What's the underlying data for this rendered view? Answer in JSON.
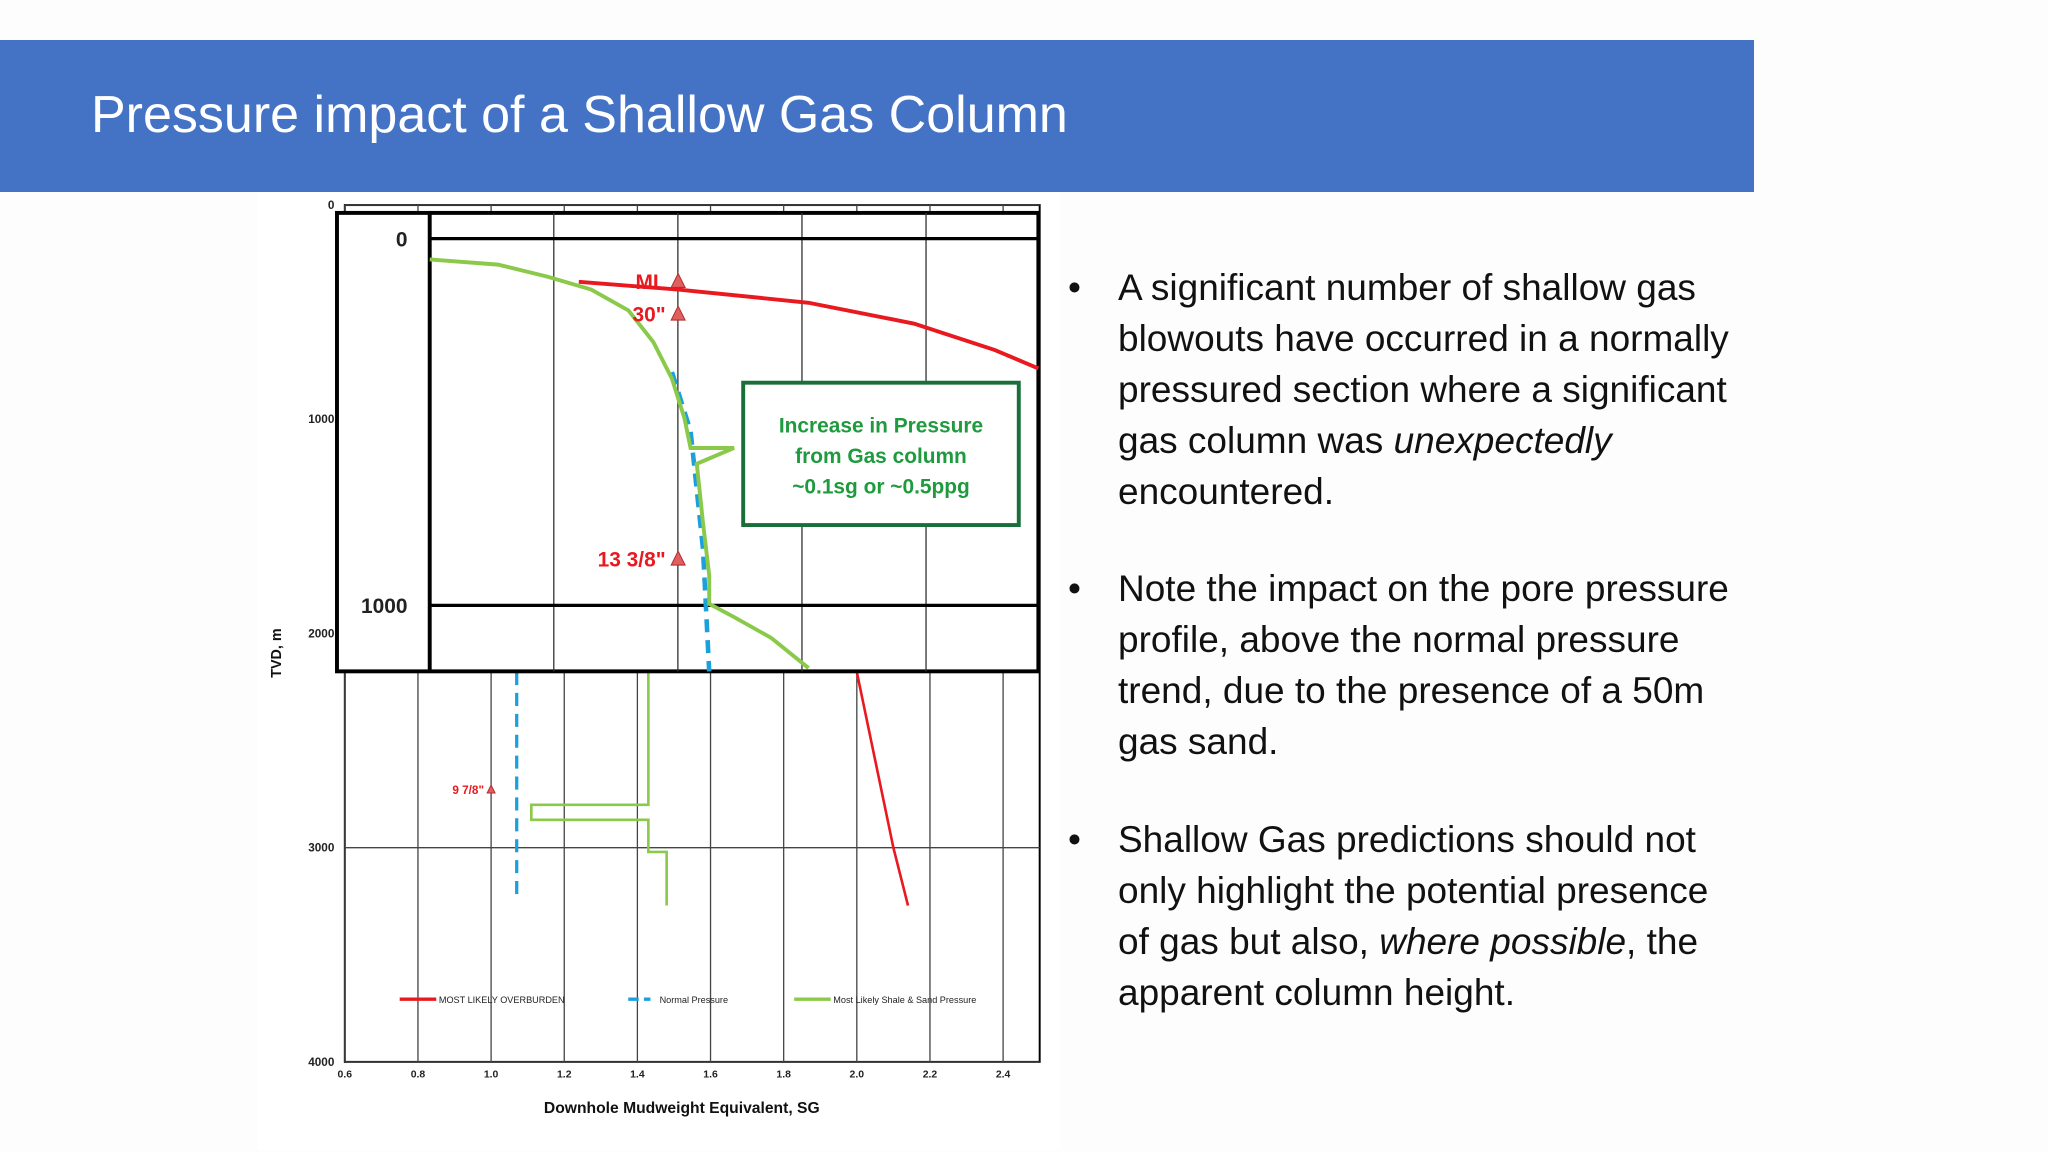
{
  "title": "Pressure impact of a Shallow Gas Column",
  "bullets": [
    [
      "A significant number of shallow gas blowouts have occurred in a normally pressured section where a significant gas column was ",
      {
        "text": "unexpectedly",
        "italic": true
      },
      " encountered."
    ],
    [
      "Note the impact on the pore pressure profile, above the normal pressure trend, due to the presence of a 50m gas sand."
    ],
    [
      "Shallow Gas predictions should not only highlight the potential presence of gas but also, ",
      {
        "text": "where possible",
        "italic": true
      },
      ", the apparent column height."
    ]
  ],
  "chart_data": [
    {
      "type": "line",
      "x_label": "Downhole Mudweight Equivalent, SG",
      "y_label": "TVD, m",
      "xlim": [
        0.6,
        2.5
      ],
      "xticks": [
        0.6,
        0.8,
        {
          "value": 1.0,
          "label": "1.0"
        },
        1.2,
        1.4,
        1.6,
        1.8,
        {
          "value": 2.0,
          "label": "2.0"
        },
        2.2,
        2.4
      ],
      "ylim": [
        0,
        4000
      ],
      "yticks": [
        0,
        1000,
        2000,
        3000,
        4000
      ],
      "y_inverted": true,
      "grid": true,
      "legend": "bottom",
      "series": [
        {
          "name": "MOST LIKELY OVERBURDEN",
          "color": "#e8191f",
          "dash": false,
          "x": [
            2.0,
            2.1,
            2.14
          ],
          "values": [
            2180,
            3000,
            3270
          ]
        },
        {
          "name": "Normal Pressure",
          "color": "#1ca0dc",
          "dash": true,
          "x": [
            1.07,
            1.07
          ],
          "values": [
            2180,
            3240
          ]
        },
        {
          "name": "Most Likely Shale & Sand Pressure",
          "color": "#8bc94a",
          "dash": false,
          "x": [
            1.43,
            1.43,
            1.11,
            1.11,
            1.43,
            1.43,
            1.48,
            1.48
          ],
          "values": [
            2180,
            2800,
            2800,
            2870,
            2870,
            3020,
            3020,
            3270
          ]
        }
      ],
      "markers": [
        {
          "label": "9 7/8\"",
          "x": 1.0,
          "y": 2730
        }
      ]
    },
    {
      "type": "line",
      "xlim": [
        0.6,
        1.58
      ],
      "ylim": [
        -70,
        1180
      ],
      "yticks": [
        0,
        1000
      ],
      "y_inverted": true,
      "series": [
        {
          "color": "#e8191f",
          "dash": false,
          "x": [
            0.84,
            1.0,
            1.21,
            1.38,
            1.51,
            1.58
          ],
          "values": [
            118,
            139,
            175,
            232,
            304,
            354
          ]
        },
        {
          "color": "#1ca0dc",
          "dash": true,
          "x": [
            0.99,
            1.02,
            1.04,
            1.05
          ],
          "values": [
            364,
            525,
            846,
            1180
          ]
        },
        {
          "color": "#8bc94a",
          "dash": false,
          "x": [
            0.6,
            0.71,
            0.79,
            0.86,
            0.92,
            0.96,
            0.99,
            1.01,
            1.02,
            1.09,
            1.03,
            1.04,
            1.05,
            1.05,
            1.09,
            1.15,
            1.21
          ],
          "values": [
            57,
            71,
            104,
            139,
            196,
            282,
            382,
            489,
            571,
            571,
            614,
            775,
            918,
            996,
            1032,
            1089,
            1171
          ]
        }
      ],
      "markers": [
        {
          "label": "ML",
          "x": 1.0,
          "y": 118
        },
        {
          "label": "30\"",
          "x": 1.0,
          "y": 207
        },
        {
          "label": "13 3/8\"",
          "x": 1.0,
          "y": 875
        }
      ],
      "annotation": [
        "Increase in Pressure",
        "from Gas column",
        "~0.1sg or ~0.5ppg"
      ]
    }
  ]
}
